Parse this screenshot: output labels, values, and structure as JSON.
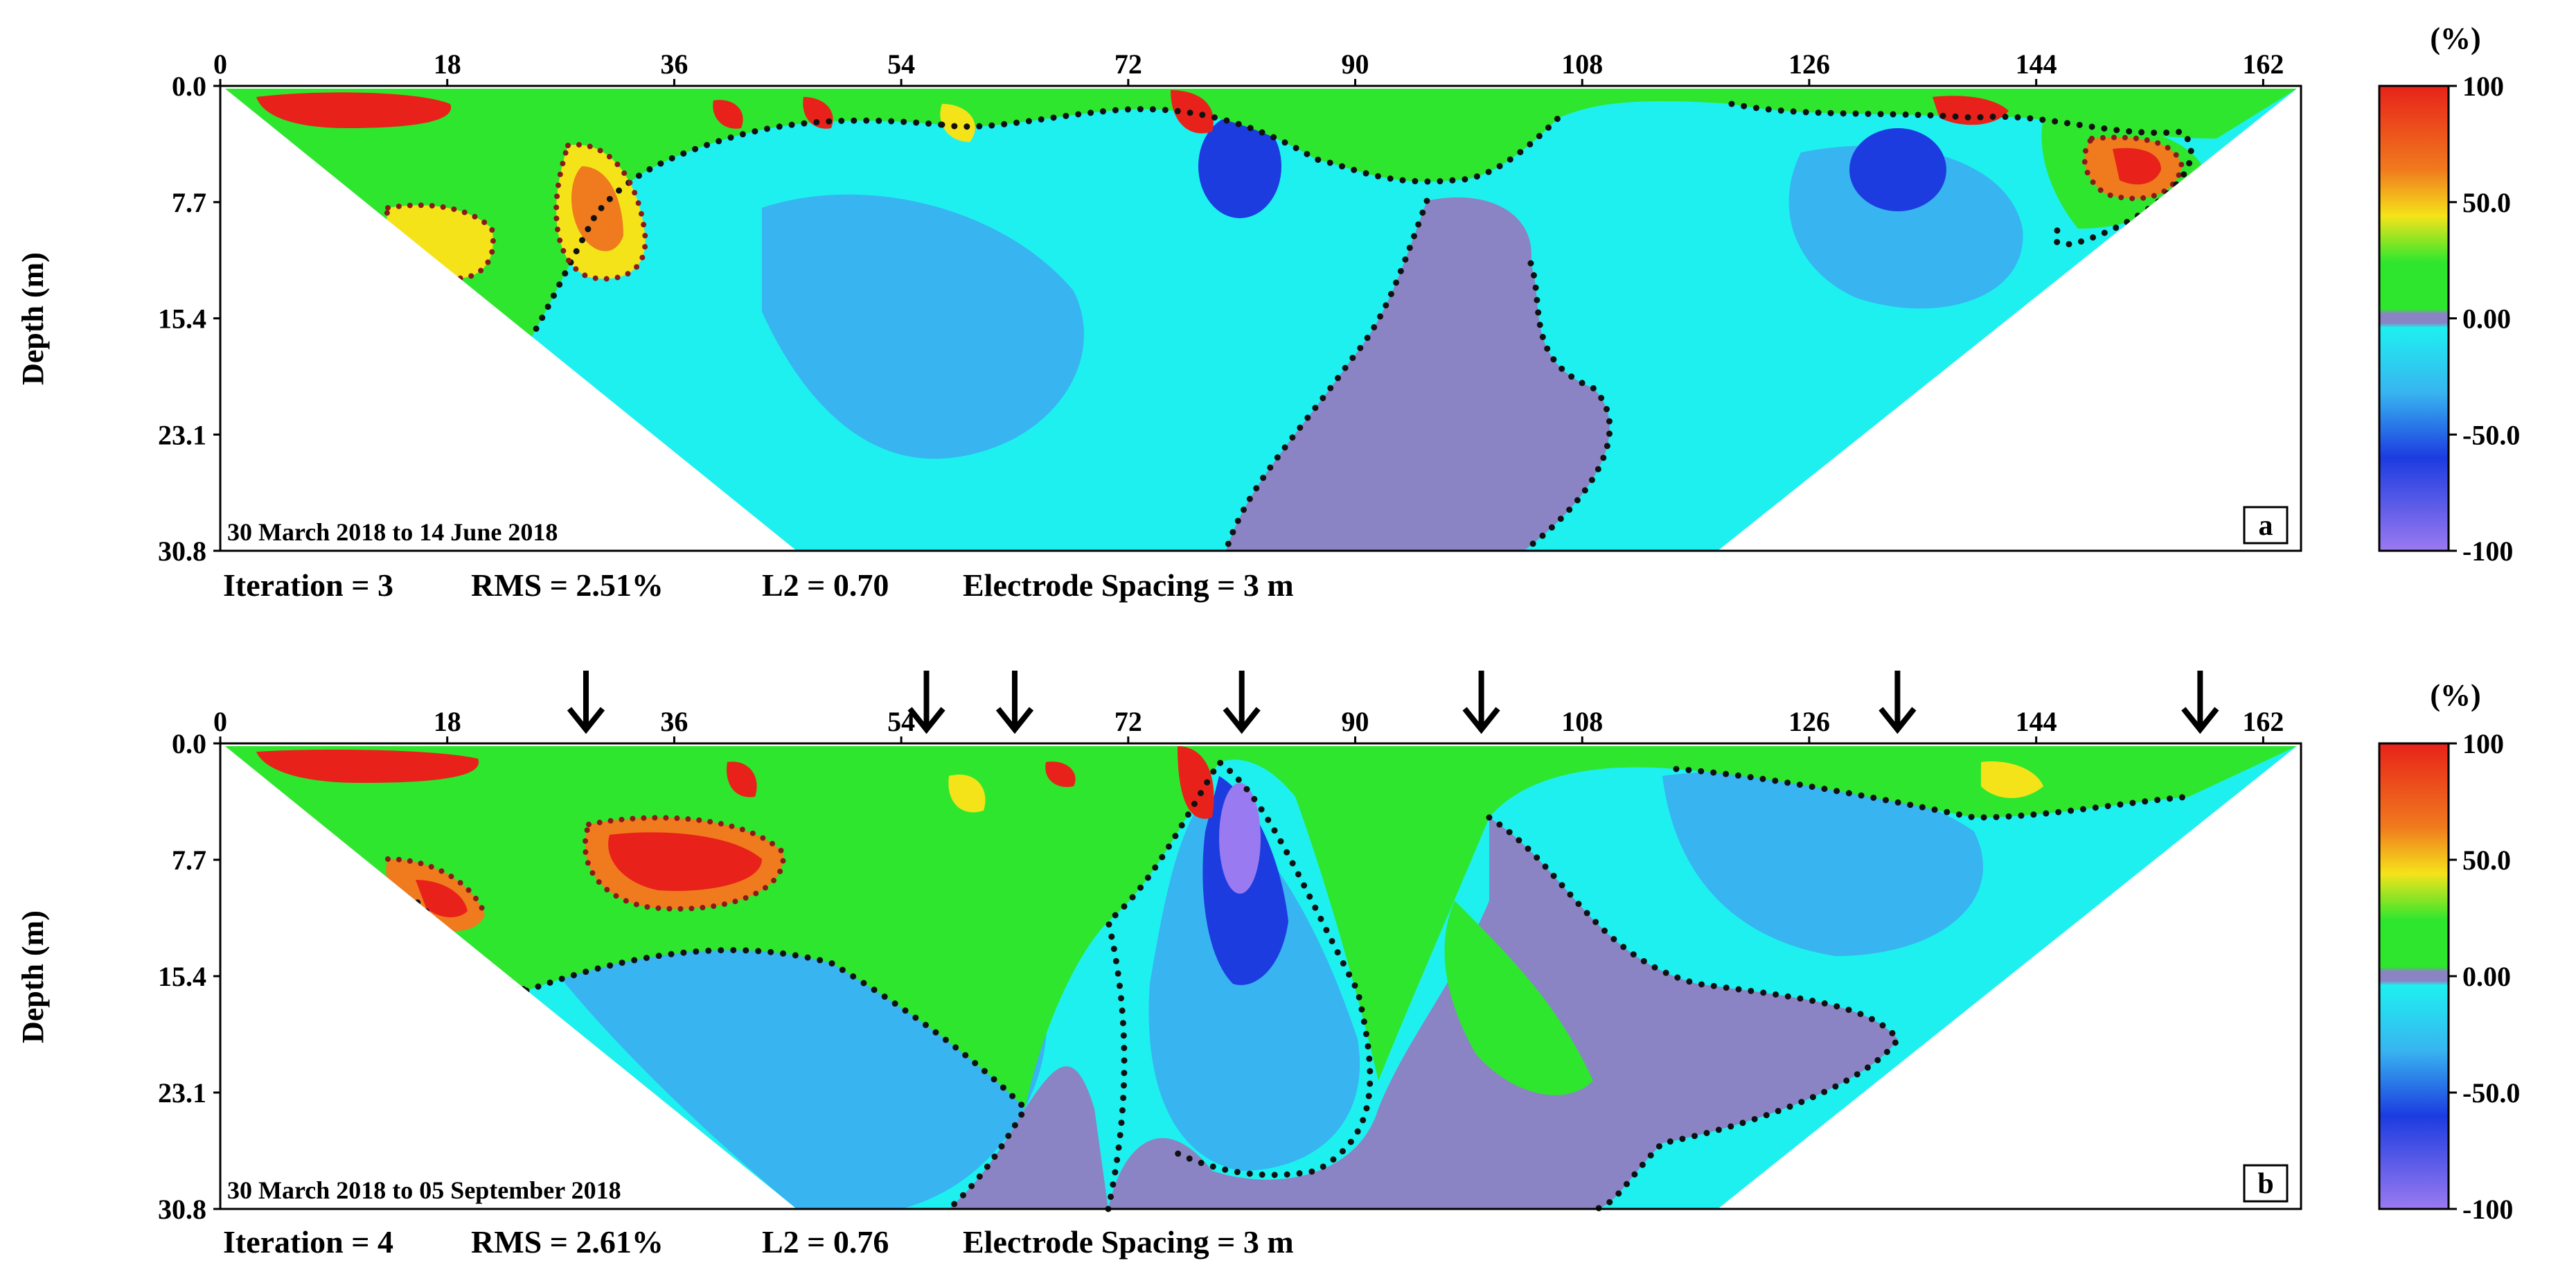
{
  "chart_data": [
    {
      "type": "heatmap",
      "panel_letter": "a",
      "date_range": "30 March 2018 to 14 June 2018",
      "ylabel": "Depth (m)",
      "x_ticks": [
        "0",
        "18",
        "36",
        "54",
        "72",
        "90",
        "108",
        "126",
        "144",
        "162"
      ],
      "x_tick_values": [
        0,
        18,
        36,
        54,
        72,
        90,
        108,
        126,
        144,
        162
      ],
      "y_ticks": [
        "0.0",
        "7.7",
        "15.4",
        "23.1",
        "30.8"
      ],
      "y_tick_values": [
        0.0,
        7.7,
        15.4,
        23.1,
        30.8
      ],
      "xlim": [
        0,
        165
      ],
      "ylim": [
        0,
        30.8
      ],
      "stats": [
        "Iteration = 3",
        "RMS = 2.51%",
        "L2 = 0.70",
        "Electrode Spacing = 3 m"
      ],
      "arrows": [],
      "colorbar": {
        "unit": "(%)",
        "tick_labels": [
          "100",
          "50.0",
          "0.00",
          "-50.0",
          "-100"
        ],
        "tick_values": [
          100,
          50,
          0,
          -50,
          -100
        ]
      }
    },
    {
      "type": "heatmap",
      "panel_letter": "b",
      "date_range": "30 March 2018 to 05 September 2018",
      "ylabel": "Depth (m)",
      "x_ticks": [
        "0",
        "18",
        "36",
        "54",
        "72",
        "90",
        "108",
        "126",
        "144",
        "162"
      ],
      "x_tick_values": [
        0,
        18,
        36,
        54,
        72,
        90,
        108,
        126,
        144,
        162
      ],
      "y_ticks": [
        "0.0",
        "7.7",
        "15.4",
        "23.1",
        "30.8"
      ],
      "y_tick_values": [
        0.0,
        7.7,
        15.4,
        23.1,
        30.8
      ],
      "xlim": [
        0,
        165
      ],
      "ylim": [
        0,
        30.8
      ],
      "stats": [
        "Iteration = 4",
        "RMS = 2.61%",
        "L2 = 0.76",
        "Electrode Spacing = 3 m"
      ],
      "arrows": [
        29,
        56,
        63,
        81,
        100,
        133,
        157
      ],
      "colorbar": {
        "unit": "(%)",
        "tick_labels": [
          "100",
          "50.0",
          "0.00",
          "-50.0",
          "-100"
        ],
        "tick_values": [
          100,
          50,
          0,
          -50,
          -100
        ]
      }
    }
  ],
  "colors": {
    "red": "#e8221a",
    "orange": "#f07a1e",
    "yellow": "#f5e31a",
    "green": "#2ee62e",
    "cyan": "#1ef0f0",
    "light_blue": "#38b4f0",
    "blue": "#1c3ce0",
    "violet": "#9a7af0",
    "zero_band": "#8a84c4",
    "contour": "#111111"
  }
}
